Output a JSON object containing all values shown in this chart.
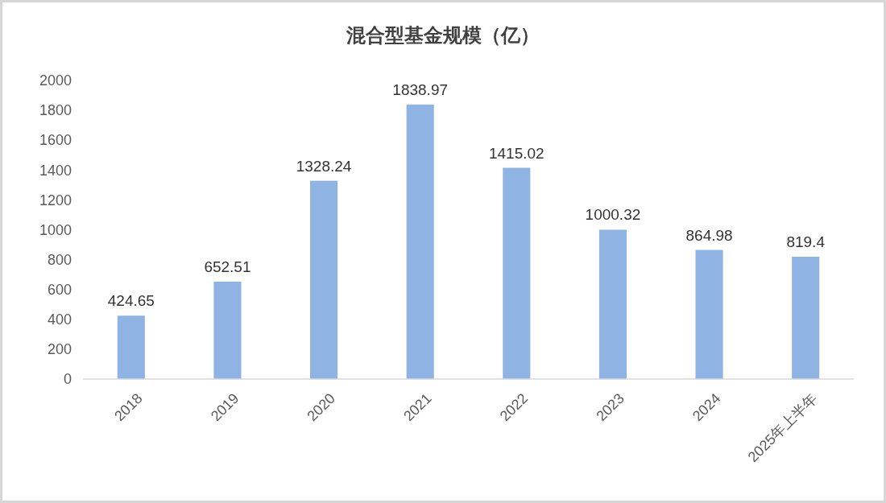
{
  "chart_data": {
    "type": "bar",
    "title": "混合型基金规模（亿）",
    "categories": [
      "2018",
      "2019",
      "2020",
      "2021",
      "2022",
      "2023",
      "2024",
      "2025年上半年"
    ],
    "values": [
      424.65,
      652.51,
      1328.24,
      1838.97,
      1415.02,
      1000.32,
      864.98,
      819.4
    ],
    "color": "#8fb4e3",
    "ylim": [
      0,
      2000
    ],
    "yticks": [
      0,
      200,
      400,
      600,
      800,
      1000,
      1200,
      1400,
      1600,
      1800,
      2000
    ],
    "data_labels": true
  }
}
